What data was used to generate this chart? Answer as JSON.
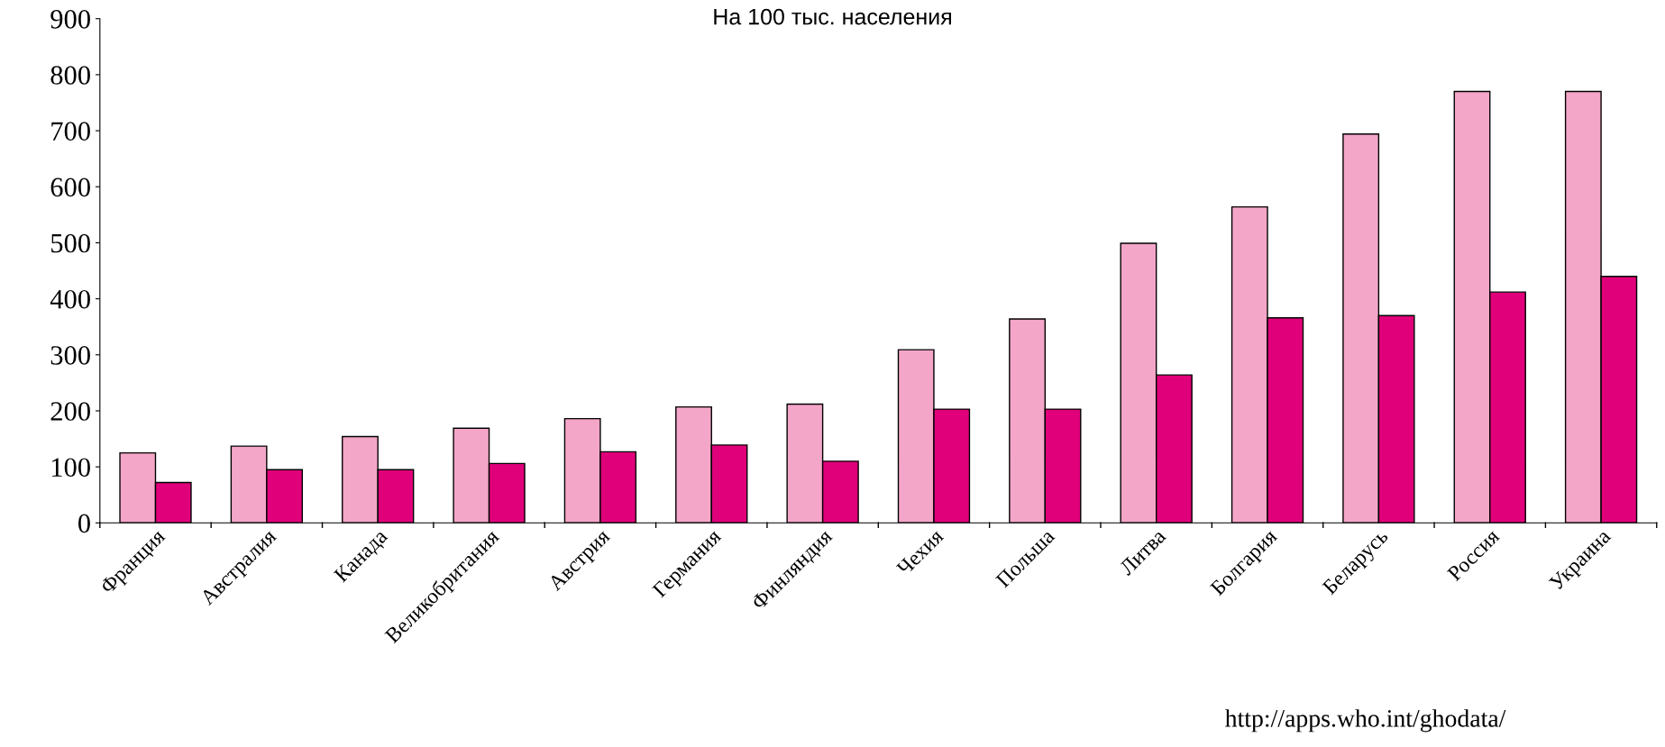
{
  "chart_data": {
    "type": "bar",
    "title": "На 100 тыс. населения",
    "categories": [
      "Франция",
      "Австралия",
      "Канада",
      "Великобритания",
      "Австрия",
      "Германия",
      "Финляндия",
      "Чехия",
      "Польша",
      "Литва",
      "Болгария",
      "Беларусь",
      "Россия",
      "Украина"
    ],
    "series": [
      {
        "color": "#f4a6c8",
        "values": [
          125,
          137,
          154,
          169,
          186,
          207,
          212,
          309,
          364,
          499,
          564,
          694,
          770,
          770
        ]
      },
      {
        "color": "#e0007a",
        "values": [
          72,
          95,
          95,
          106,
          127,
          139,
          110,
          203,
          203,
          264,
          366,
          370,
          412,
          440
        ]
      }
    ],
    "ylim": [
      0,
      900
    ],
    "yticks": [
      0,
      100,
      200,
      300,
      400,
      500,
      600,
      700,
      800,
      900
    ],
    "grid": false,
    "legend": false,
    "annotations": [
      "http://apps.who.int/ghodata/"
    ]
  }
}
